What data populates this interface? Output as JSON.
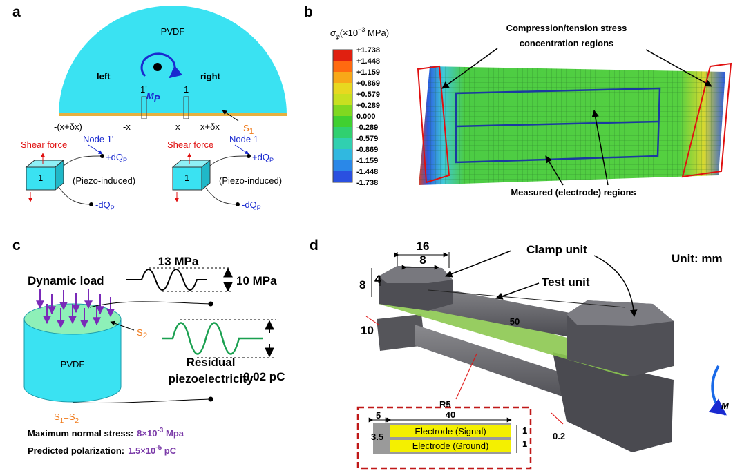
{
  "panels": {
    "a": {
      "label": "a",
      "material": "PVDF",
      "left": "left",
      "right": "right",
      "moment": "M",
      "moment_sub": "P",
      "node_left": "1'",
      "node_right": "1",
      "pos_left_outer": "-(x+δx)",
      "pos_left_inner": "-x",
      "pos_right_inner": "x",
      "pos_right_outer": "x+δx",
      "surface": "S",
      "surface_sub": "1",
      "elements": [
        {
          "shear": "Shear force",
          "node": "Node 1'",
          "cube": "1'",
          "plus": "+dQ",
          "plus_sub": "P",
          "note": "(Piezo-induced)",
          "minus": "-dQ",
          "minus_sub": "P"
        },
        {
          "shear": "Shear force",
          "node": "Node 1",
          "cube": "1",
          "plus": "+dQ",
          "plus_sub": "P",
          "note": "(Piezo-induced)",
          "minus": "-dQ",
          "minus_sub": "P"
        }
      ]
    },
    "b": {
      "label": "b",
      "colorbar_title": {
        "symbol": "σ",
        "symbol_sub": "φ",
        "unit_pre": "(×10",
        "unit_sup": "−3",
        "unit_post": " MPa)"
      },
      "colorbar_ticks": [
        "+1.738",
        "+1.448",
        "+1.159",
        "+0.869",
        "+0.579",
        "+0.289",
        "0.000",
        "-0.289",
        "-0.579",
        "-0.869",
        "-1.159",
        "-1.448",
        "-1.738"
      ],
      "concentration_label": [
        "Compression/tension stress",
        "concentration regions"
      ],
      "measured_label": "Measured (electrode) regions"
    },
    "c": {
      "label": "c",
      "load": "Dynamic load",
      "peak": "13 MPa",
      "amplitude": "10 MPa",
      "surface": "S",
      "surface_sub": "2",
      "material": "PVDF",
      "residual": [
        "Residual",
        "piezoelectricity"
      ],
      "charge": "0.02 pC",
      "equality": {
        "s1": "S",
        "s1_sub": "1",
        "eq": "=",
        "s2": "S",
        "s2_sub": "2"
      },
      "stress_label": "Maximum normal stress:",
      "stress_value": {
        "pre": "8×10",
        "sup": "-3",
        "post": " Mpa"
      },
      "polarization_label": "Predicted  polarization:",
      "polarization_value": {
        "pre": "1.5×10",
        "sup": "-5",
        "post": " pC"
      }
    },
    "d": {
      "label": "d",
      "clamp": "Clamp unit",
      "test": "Test unit",
      "unit": "Unit: mm",
      "dims": {
        "clamp_width": "16",
        "clamp_half": "8",
        "clamp_step": "4",
        "clamp_height": "8",
        "clamp_gap": "10",
        "length": "50",
        "radius": "R5",
        "thickness": "0.2"
      },
      "moment": "M",
      "inset": {
        "margin": "5",
        "length": "40",
        "width_top": "1",
        "width_bottom": "1",
        "height": "3.5",
        "signal": "Electrode (Signal)",
        "ground": "Electrode (Ground)"
      }
    }
  }
}
